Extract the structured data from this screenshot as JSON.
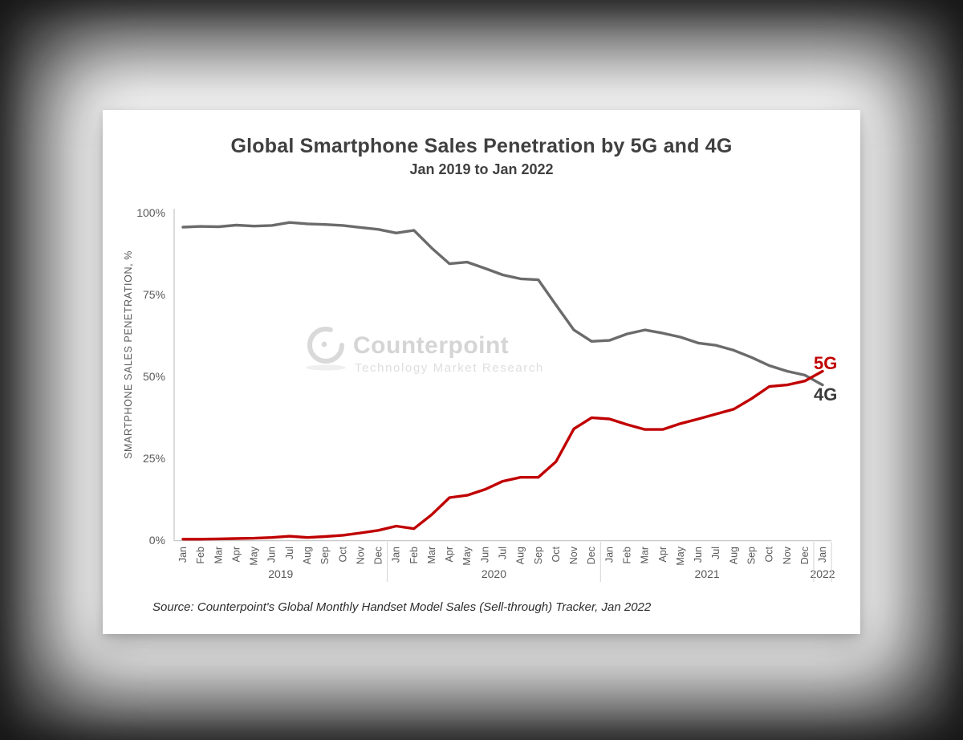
{
  "chart": {
    "title": "Global Smartphone Sales Penetration by 5G and 4G",
    "subtitle": "Jan 2019 to Jan 2022",
    "source": "Source: Counterpoint's Global Monthly Handset Model Sales (Sell-through) Tracker, Jan 2022",
    "watermark": {
      "name": "Counterpoint",
      "tagline": "Technology Market Research"
    }
  },
  "chart_data": {
    "type": "line",
    "title": "Global Smartphone Sales Penetration by 5G and 4G",
    "subtitle": "Jan 2019 to Jan 2022",
    "xlabel": "",
    "ylabel": "SMARTPHONE SALES PENETRATION, %",
    "ylim": [
      0,
      100
    ],
    "grid": false,
    "legend_position": "line-end-labels",
    "y_ticks": [
      {
        "label": "0%",
        "value": 0
      },
      {
        "label": "25%",
        "value": 25
      },
      {
        "label": "50%",
        "value": 50
      },
      {
        "label": "75%",
        "value": 75
      },
      {
        "label": "100%",
        "value": 100
      }
    ],
    "months": [
      "Jan",
      "Feb",
      "Mar",
      "Apr",
      "May",
      "Jun",
      "Jul",
      "Aug",
      "Sep",
      "Oct",
      "Nov",
      "Dec",
      "Jan",
      "Feb",
      "Mar",
      "Apr",
      "May",
      "Jun",
      "Jul",
      "Aug",
      "Sep",
      "Oct",
      "Nov",
      "Dec",
      "Jan",
      "Feb",
      "Mar",
      "Apr",
      "May",
      "Jun",
      "Jul",
      "Aug",
      "Sep",
      "Oct",
      "Nov",
      "Dec",
      "Jan"
    ],
    "years": [
      {
        "label": "2019",
        "start": 0,
        "count": 12
      },
      {
        "label": "2020",
        "start": 12,
        "count": 12
      },
      {
        "label": "2021",
        "start": 24,
        "count": 12
      },
      {
        "label": "2022",
        "start": 36,
        "count": 1
      }
    ],
    "series": [
      {
        "name": "4G",
        "color": "#6b6b6b",
        "label_color": "#3c3c3c",
        "values": [
          95.6,
          95.8,
          95.7,
          96.2,
          95.9,
          96.1,
          97.0,
          96.6,
          96.4,
          96.1,
          95.5,
          94.9,
          93.8,
          94.6,
          89.2,
          84.4,
          84.9,
          83.0,
          81.0,
          79.8,
          79.5,
          71.8,
          64.2,
          60.7,
          61.0,
          63.0,
          64.2,
          63.2,
          62.0,
          60.2,
          59.5,
          58.0,
          55.8,
          53.3,
          51.6,
          50.4,
          47.4
        ]
      },
      {
        "name": "5G",
        "color": "#c00000",
        "label_color": "#c00000",
        "values": [
          0.3,
          0.3,
          0.4,
          0.5,
          0.6,
          0.8,
          1.2,
          0.8,
          1.1,
          1.5,
          2.2,
          3.0,
          4.3,
          3.5,
          7.8,
          13.0,
          13.7,
          15.5,
          18.0,
          19.2,
          19.2,
          24.0,
          34.0,
          37.4,
          37.0,
          35.3,
          33.8,
          33.8,
          35.6,
          37.0,
          38.5,
          40.0,
          43.2,
          46.9,
          47.4,
          48.6,
          51.6
        ]
      }
    ]
  }
}
